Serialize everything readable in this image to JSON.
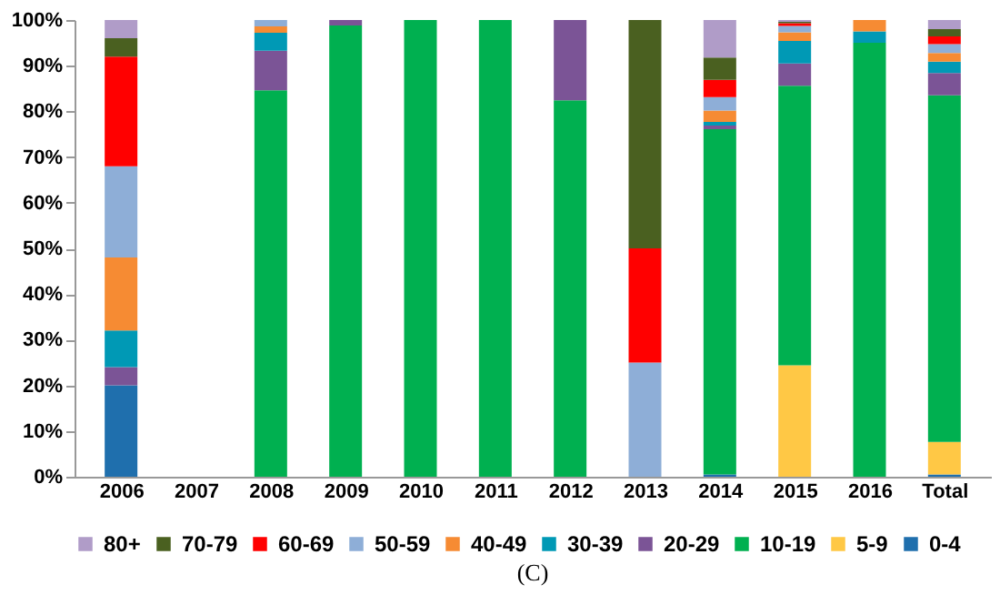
{
  "chart_data": {
    "type": "bar",
    "stacked": true,
    "categories": [
      "2006",
      "2007",
      "2008",
      "2009",
      "2010",
      "2011",
      "2012",
      "2013",
      "2014",
      "2015",
      "2016",
      "Total"
    ],
    "series": [
      {
        "name": "0-4",
        "color": "#1f6fad",
        "values": [
          20,
          null,
          null,
          null,
          null,
          null,
          null,
          null,
          0.5,
          null,
          null,
          0.5
        ]
      },
      {
        "name": "5-9",
        "color": "#ffc845",
        "values": [
          null,
          null,
          null,
          null,
          null,
          null,
          null,
          null,
          null,
          24.4,
          null,
          7.1
        ]
      },
      {
        "name": "10-19",
        "color": "#00b050",
        "values": [
          null,
          null,
          84.6,
          98.8,
          100,
          100,
          82.4,
          null,
          75.6,
          61.2,
          95,
          75.9
        ]
      },
      {
        "name": "20-29",
        "color": "#7b5496",
        "values": [
          4,
          null,
          8.7,
          1.2,
          null,
          null,
          17.6,
          null,
          0.8,
          4.9,
          null,
          4.9
        ]
      },
      {
        "name": "30-39",
        "color": "#0099b5",
        "values": [
          8,
          null,
          3.9,
          null,
          null,
          null,
          null,
          null,
          0.8,
          4.9,
          2.5,
          2.5
        ]
      },
      {
        "name": "40-49",
        "color": "#f68b33",
        "values": [
          16,
          null,
          1.4,
          null,
          null,
          null,
          null,
          null,
          2.5,
          1.9,
          2.5,
          1.9
        ]
      },
      {
        "name": "50-59",
        "color": "#8eaed7",
        "values": [
          20,
          null,
          1.4,
          null,
          null,
          null,
          null,
          25,
          2.9,
          1.4,
          null,
          1.9
        ]
      },
      {
        "name": "60-69",
        "color": "#ff0000",
        "values": [
          24,
          null,
          null,
          null,
          null,
          null,
          null,
          25,
          3.8,
          0.6,
          null,
          1.7
        ]
      },
      {
        "name": "70-79",
        "color": "#4a6020",
        "values": [
          4,
          null,
          null,
          null,
          null,
          null,
          null,
          50,
          4.9,
          0.3,
          null,
          1.6
        ]
      },
      {
        "name": "80+",
        "color": "#b09cc8",
        "values": [
          4,
          null,
          null,
          null,
          null,
          null,
          null,
          null,
          8.2,
          0.4,
          null,
          2.0
        ]
      }
    ],
    "ylim": [
      0,
      100
    ],
    "yticks": [
      {
        "value": 0,
        "label": "0%"
      },
      {
        "value": 10,
        "label": "10%"
      },
      {
        "value": 20,
        "label": "20%"
      },
      {
        "value": 30,
        "label": "30%"
      },
      {
        "value": 40,
        "label": "40%"
      },
      {
        "value": 50,
        "label": "50%"
      },
      {
        "value": 60,
        "label": "60%"
      },
      {
        "value": 70,
        "label": "70%"
      },
      {
        "value": 80,
        "label": "80%"
      },
      {
        "value": 90,
        "label": "90%"
      },
      {
        "value": 100,
        "label": "100%"
      }
    ],
    "grid": false,
    "legend": "bottom",
    "annotations": [
      "(C)"
    ]
  }
}
